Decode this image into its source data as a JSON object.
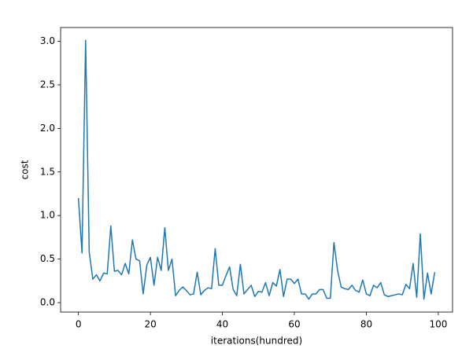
{
  "chart_data": {
    "type": "line",
    "xlabel": "iterations(hundred)",
    "ylabel": "cost",
    "x": [
      0,
      1,
      2,
      3,
      4,
      5,
      6,
      7,
      8,
      9,
      10,
      11,
      12,
      13,
      14,
      15,
      16,
      17,
      18,
      19,
      20,
      21,
      22,
      23,
      24,
      25,
      26,
      27,
      28,
      29,
      30,
      31,
      32,
      33,
      34,
      35,
      36,
      37,
      38,
      39,
      40,
      41,
      42,
      43,
      44,
      45,
      46,
      47,
      48,
      49,
      50,
      51,
      52,
      53,
      54,
      55,
      56,
      57,
      58,
      59,
      60,
      61,
      62,
      63,
      64,
      65,
      66,
      67,
      68,
      69,
      70,
      71,
      72,
      73,
      74,
      75,
      76,
      77,
      78,
      79,
      80,
      81,
      82,
      83,
      84,
      85,
      86,
      87,
      88,
      89,
      90,
      91,
      92,
      93,
      94,
      95,
      96,
      97,
      98,
      99
    ],
    "series": [
      {
        "color": "#1f77b4",
        "values": [
          1.2,
          0.57,
          3.01,
          0.58,
          0.27,
          0.32,
          0.25,
          0.34,
          0.33,
          0.88,
          0.36,
          0.37,
          0.32,
          0.45,
          0.33,
          0.72,
          0.5,
          0.48,
          0.1,
          0.43,
          0.52,
          0.2,
          0.52,
          0.37,
          0.86,
          0.37,
          0.5,
          0.08,
          0.14,
          0.18,
          0.14,
          0.09,
          0.1,
          0.35,
          0.09,
          0.14,
          0.17,
          0.16,
          0.62,
          0.2,
          0.2,
          0.31,
          0.41,
          0.15,
          0.08,
          0.44,
          0.1,
          0.15,
          0.2,
          0.07,
          0.13,
          0.12,
          0.23,
          0.08,
          0.23,
          0.19,
          0.38,
          0.07,
          0.27,
          0.27,
          0.22,
          0.27,
          0.1,
          0.1,
          0.04,
          0.1,
          0.1,
          0.15,
          0.15,
          0.05,
          0.05,
          0.69,
          0.37,
          0.18,
          0.16,
          0.15,
          0.2,
          0.14,
          0.12,
          0.26,
          0.1,
          0.08,
          0.2,
          0.17,
          0.23,
          0.09,
          0.07,
          0.08,
          0.09,
          0.1,
          0.09,
          0.21,
          0.16,
          0.45,
          0.06,
          0.79,
          0.04,
          0.34,
          0.1,
          0.35
        ]
      }
    ],
    "xlim": [
      -4.95,
      103.95
    ],
    "xticks": [
      0,
      20,
      40,
      60,
      80,
      100
    ],
    "ylim": [
      -0.108,
      3.158
    ],
    "yticks": [
      {
        "value": 0,
        "label": "0.0"
      },
      {
        "value": 0.5,
        "label": "0.5"
      },
      {
        "value": 1,
        "label": "1.0"
      },
      {
        "value": 1.5,
        "label": "1.5"
      },
      {
        "value": 2,
        "label": "2.0"
      },
      {
        "value": 2.5,
        "label": "2.5"
      },
      {
        "value": 3,
        "label": "3.0"
      }
    ]
  }
}
